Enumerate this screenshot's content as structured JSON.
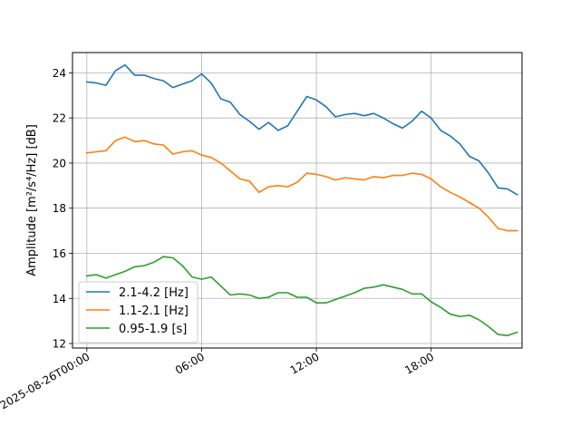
{
  "chart_data": {
    "type": "line",
    "title": "",
    "xlabel": "",
    "ylabel": "Amplitude [m²/s⁴/Hz] [dB]",
    "ylim": [
      11.8,
      24.9
    ],
    "xlim_hours": [
      -0.75,
      22.75
    ],
    "grid": true,
    "legend_position": "lower-left",
    "x_ticks": [
      {
        "hour": 0,
        "label": "2025-08-26T00:00"
      },
      {
        "hour": 6,
        "label": "06:00"
      },
      {
        "hour": 12,
        "label": "12:00"
      },
      {
        "hour": 18,
        "label": "18:00"
      }
    ],
    "y_ticks": [
      12,
      14,
      16,
      18,
      20,
      22,
      24
    ],
    "x_hours": [
      0,
      0.5,
      1,
      1.5,
      2,
      2.5,
      3,
      3.5,
      4,
      4.5,
      5,
      5.5,
      6,
      6.5,
      7,
      7.5,
      8,
      8.5,
      9,
      9.5,
      10,
      10.5,
      11,
      11.5,
      12,
      12.5,
      13,
      13.5,
      14,
      14.5,
      15,
      15.5,
      16,
      16.5,
      17,
      17.5,
      18,
      18.5,
      19,
      19.5,
      20,
      20.5,
      21,
      21.5,
      22,
      22.5
    ],
    "series": [
      {
        "name": "2.1-4.2 [Hz]",
        "color": "#1f77b4",
        "values": [
          23.6,
          23.55,
          23.45,
          24.1,
          24.35,
          23.9,
          23.9,
          23.75,
          23.65,
          23.35,
          23.5,
          23.65,
          23.95,
          23.55,
          22.85,
          22.7,
          22.15,
          21.85,
          21.5,
          21.8,
          21.45,
          21.65,
          22.3,
          22.95,
          22.8,
          22.5,
          22.05,
          22.15,
          22.2,
          22.1,
          22.2,
          22.0,
          21.75,
          21.55,
          21.85,
          22.3,
          22.0,
          21.45,
          21.2,
          20.85,
          20.3,
          20.1,
          19.55,
          18.9,
          18.85,
          18.6
        ]
      },
      {
        "name": "1.1-2.1 [Hz]",
        "color": "#ff7f0e",
        "values": [
          20.45,
          20.5,
          20.55,
          21.0,
          21.15,
          20.95,
          21.0,
          20.85,
          20.8,
          20.4,
          20.5,
          20.55,
          20.35,
          20.25,
          20.0,
          19.65,
          19.3,
          19.2,
          18.7,
          18.95,
          19.0,
          18.95,
          19.15,
          19.55,
          19.5,
          19.4,
          19.25,
          19.35,
          19.3,
          19.25,
          19.4,
          19.35,
          19.45,
          19.45,
          19.55,
          19.5,
          19.3,
          18.95,
          18.7,
          18.5,
          18.25,
          18.0,
          17.6,
          17.1,
          17.0,
          17.0
        ]
      },
      {
        "name": "0.95-1.9 [s]",
        "color": "#2ca02c",
        "values": [
          15.0,
          15.05,
          14.9,
          15.05,
          15.2,
          15.4,
          15.45,
          15.6,
          15.85,
          15.8,
          15.45,
          14.95,
          14.85,
          14.95,
          14.55,
          14.15,
          14.2,
          14.15,
          14.0,
          14.05,
          14.25,
          14.25,
          14.05,
          14.05,
          13.8,
          13.8,
          13.95,
          14.1,
          14.25,
          14.45,
          14.5,
          14.6,
          14.5,
          14.4,
          14.2,
          14.2,
          13.85,
          13.6,
          13.3,
          13.2,
          13.25,
          13.05,
          12.75,
          12.4,
          12.35,
          12.5
        ]
      }
    ]
  }
}
